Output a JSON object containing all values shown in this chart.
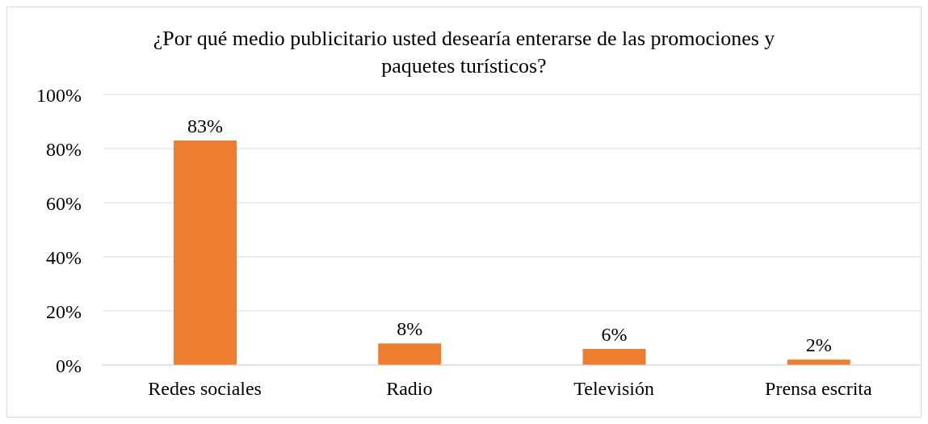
{
  "chart_data": {
    "type": "bar",
    "title": "¿Por qué medio publicitario usted desearía enterarse de las promociones y paquetes turísticos?",
    "categories": [
      "Redes sociales",
      "Radio",
      "Televisión",
      "Prensa escrita"
    ],
    "values": [
      83,
      8,
      6,
      2
    ],
    "value_labels": [
      "83%",
      "8%",
      "6%",
      "2%"
    ],
    "color": "#ed7d31",
    "ylim": [
      0,
      100
    ],
    "yticks": [
      {
        "value": 0,
        "label": "0%"
      },
      {
        "value": 20,
        "label": "20%"
      },
      {
        "value": 40,
        "label": "40%"
      },
      {
        "value": 60,
        "label": "60%"
      },
      {
        "value": 80,
        "label": "80%"
      },
      {
        "value": 100,
        "label": "100%"
      }
    ],
    "grid": "y",
    "legend": false
  }
}
